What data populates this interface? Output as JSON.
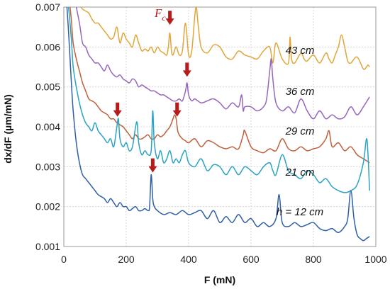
{
  "chart_data": {
    "type": "line",
    "xlabel": "F (mN)",
    "ylabel": "dx/dF (µm/mN)",
    "xlim": [
      0,
      1000
    ],
    "ylim": [
      0.001,
      0.007
    ],
    "xticks": [
      "0",
      "200",
      "400",
      "600",
      "800",
      "1000"
    ],
    "yticks": [
      "0.001",
      "0.002",
      "0.003",
      "0.004",
      "0.005",
      "0.006",
      "0.007"
    ],
    "grid": true,
    "annotation": {
      "text": "F",
      "sub": "c",
      "color": "#b71c1c"
    },
    "series": [
      {
        "name": "43 cm",
        "label": "43 cm",
        "color": "#e0a63a",
        "x": [
          55,
          60,
          70,
          80,
          90,
          100,
          110,
          120,
          130,
          140,
          150,
          160,
          170,
          180,
          190,
          200,
          210,
          220,
          230,
          240,
          250,
          260,
          270,
          280,
          290,
          300,
          310,
          320,
          330,
          335,
          340,
          345,
          350,
          360,
          370,
          380,
          390,
          400,
          410,
          420,
          425,
          430,
          440,
          460,
          480,
          500,
          520,
          540,
          560,
          580,
          600,
          620,
          640,
          660,
          670,
          680,
          700,
          720,
          725,
          730,
          740,
          760,
          770,
          780,
          800,
          820,
          840,
          850,
          860,
          870,
          880,
          890,
          900,
          910,
          920,
          940,
          960,
          970,
          975,
          980
        ],
        "y": [
          0.007,
          0.00695,
          0.0069,
          0.00685,
          0.0067,
          0.0066,
          0.0066,
          0.0065,
          0.0064,
          0.0063,
          0.0062,
          0.00625,
          0.0065,
          0.0061,
          0.00635,
          0.0062,
          0.0061,
          0.006,
          0.0063,
          0.0061,
          0.0059,
          0.00595,
          0.0059,
          0.006,
          0.00585,
          0.006,
          0.0059,
          0.00585,
          0.0058,
          0.006,
          0.00635,
          0.0059,
          0.0058,
          0.006,
          0.0058,
          0.0059,
          0.0066,
          0.0058,
          0.0059,
          0.0068,
          0.007,
          0.0066,
          0.006,
          0.00585,
          0.00605,
          0.006,
          0.00575,
          0.0057,
          0.0059,
          0.0058,
          0.00575,
          0.0057,
          0.0059,
          0.006,
          0.0056,
          0.0061,
          0.0057,
          0.0056,
          0.00625,
          0.0057,
          0.0056,
          0.00585,
          0.0057,
          0.00565,
          0.0058,
          0.0056,
          0.00585,
          0.0057,
          0.0056,
          0.0058,
          0.006,
          0.0063,
          0.006,
          0.00565,
          0.0056,
          0.00575,
          0.00545,
          0.0055,
          0.00555,
          0.0055
        ]
      },
      {
        "name": "36 cm",
        "label": "36 cm",
        "color": "#9467bd",
        "x": [
          40,
          50,
          60,
          70,
          80,
          90,
          100,
          110,
          120,
          130,
          140,
          150,
          160,
          170,
          180,
          190,
          200,
          210,
          220,
          230,
          240,
          250,
          260,
          270,
          280,
          290,
          300,
          310,
          320,
          330,
          340,
          350,
          360,
          370,
          380,
          390,
          395,
          400,
          410,
          420,
          440,
          460,
          480,
          500,
          520,
          540,
          560,
          570,
          575,
          580,
          600,
          620,
          640,
          650,
          660,
          665,
          670,
          680,
          700,
          720,
          740,
          760,
          780,
          800,
          820,
          840,
          860,
          880,
          900,
          920,
          940,
          960,
          980
        ],
        "y": [
          0.007,
          0.0066,
          0.0061,
          0.006,
          0.0058,
          0.0057,
          0.0056,
          0.0056,
          0.0055,
          0.0054,
          0.00555,
          0.0054,
          0.0053,
          0.00525,
          0.0053,
          0.0052,
          0.00515,
          0.0051,
          0.0052,
          0.00515,
          0.005,
          0.00505,
          0.005,
          0.00495,
          0.0049,
          0.0049,
          0.00485,
          0.0048,
          0.0048,
          0.00475,
          0.0047,
          0.00465,
          0.00465,
          0.0047,
          0.00465,
          0.0049,
          0.0051,
          0.0048,
          0.00465,
          0.0047,
          0.0046,
          0.00465,
          0.0047,
          0.0046,
          0.00445,
          0.0046,
          0.0045,
          0.0048,
          0.0044,
          0.0045,
          0.0045,
          0.0044,
          0.0045,
          0.0047,
          0.0054,
          0.0057,
          0.0052,
          0.0046,
          0.0044,
          0.0045,
          0.00435,
          0.0047,
          0.0044,
          0.0042,
          0.0044,
          0.0042,
          0.0043,
          0.0042,
          0.00425,
          0.0045,
          0.0043,
          0.0045,
          0.00475
        ]
      },
      {
        "name": "29 cm",
        "label": "29 cm",
        "color": "#c0603a",
        "x": [
          20,
          25,
          30,
          40,
          50,
          60,
          70,
          80,
          90,
          100,
          110,
          120,
          130,
          140,
          150,
          160,
          170,
          180,
          190,
          200,
          210,
          220,
          230,
          240,
          250,
          260,
          270,
          280,
          290,
          300,
          310,
          320,
          330,
          340,
          350,
          355,
          360,
          365,
          370,
          380,
          390,
          400,
          420,
          440,
          460,
          480,
          500,
          520,
          540,
          560,
          575,
          580,
          600,
          620,
          640,
          660,
          680,
          700,
          720,
          740,
          760,
          780,
          800,
          820,
          840,
          850,
          860,
          880,
          900,
          920,
          940,
          960,
          980
        ],
        "y": [
          0.007,
          0.0066,
          0.0061,
          0.0057,
          0.0054,
          0.0051,
          0.0049,
          0.0047,
          0.00465,
          0.0046,
          0.0045,
          0.0044,
          0.00435,
          0.0043,
          0.0042,
          0.0042,
          0.0041,
          0.00405,
          0.004,
          0.0039,
          0.0038,
          0.0037,
          0.0038,
          0.0037,
          0.0037,
          0.00375,
          0.0038,
          0.0037,
          0.0037,
          0.0038,
          0.00375,
          0.0038,
          0.0039,
          0.004,
          0.0042,
          0.0043,
          0.0042,
          0.0039,
          0.0038,
          0.0037,
          0.00365,
          0.0036,
          0.0037,
          0.0035,
          0.00365,
          0.0036,
          0.0035,
          0.00345,
          0.0035,
          0.00345,
          0.0038,
          0.0039,
          0.0035,
          0.0034,
          0.00335,
          0.00345,
          0.0034,
          0.0037,
          0.00345,
          0.0034,
          0.0035,
          0.0034,
          0.00345,
          0.0035,
          0.0037,
          0.0039,
          0.0035,
          0.0036,
          0.0034,
          0.0035,
          0.0033,
          0.0032,
          0.0031
        ]
      },
      {
        "name": "21 cm",
        "label": "21 cm",
        "color": "#2aa3c5",
        "x": [
          15,
          20,
          25,
          30,
          40,
          50,
          60,
          70,
          80,
          90,
          100,
          110,
          120,
          130,
          140,
          150,
          160,
          170,
          175,
          180,
          190,
          200,
          210,
          220,
          230,
          235,
          240,
          250,
          260,
          270,
          280,
          285,
          290,
          300,
          310,
          320,
          330,
          340,
          350,
          360,
          370,
          380,
          390,
          400,
          420,
          440,
          460,
          480,
          500,
          520,
          540,
          560,
          580,
          600,
          620,
          640,
          660,
          670,
          680,
          700,
          720,
          740,
          760,
          780,
          800,
          820,
          840,
          860,
          880,
          900,
          920,
          940,
          960,
          970,
          975,
          980
        ],
        "y": [
          0.007,
          0.0066,
          0.0061,
          0.0055,
          0.005,
          0.0046,
          0.0043,
          0.0041,
          0.004,
          0.0039,
          0.0041,
          0.0039,
          0.0038,
          0.0037,
          0.0036,
          0.0037,
          0.0035,
          0.004,
          0.0042,
          0.0037,
          0.0035,
          0.0036,
          0.0034,
          0.0035,
          0.004,
          0.0041,
          0.0036,
          0.0033,
          0.0034,
          0.0033,
          0.0034,
          0.0044,
          0.0036,
          0.0032,
          0.0034,
          0.0031,
          0.0032,
          0.0034,
          0.0031,
          0.0032,
          0.0031,
          0.0033,
          0.0034,
          0.0031,
          0.003,
          0.0032,
          0.0029,
          0.00305,
          0.003,
          0.0028,
          0.003,
          0.0028,
          0.003,
          0.0029,
          0.0028,
          0.003,
          0.0031,
          0.0029,
          0.0028,
          0.0033,
          0.0029,
          0.0028,
          0.0027,
          0.0029,
          0.0028,
          0.0026,
          0.0027,
          0.0025,
          0.0024,
          0.00235,
          0.0024,
          0.00255,
          0.0031,
          0.0037,
          0.0033,
          0.0024
        ]
      },
      {
        "name": "h = 12 cm",
        "label": "h = 12 cm",
        "color": "#2f5fa8",
        "x": [
          10,
          15,
          20,
          25,
          30,
          40,
          50,
          60,
          70,
          80,
          90,
          100,
          110,
          120,
          130,
          140,
          150,
          160,
          170,
          180,
          190,
          200,
          210,
          220,
          230,
          240,
          250,
          260,
          270,
          275,
          280,
          285,
          290,
          300,
          320,
          340,
          360,
          380,
          400,
          420,
          440,
          460,
          480,
          500,
          520,
          540,
          560,
          580,
          600,
          620,
          640,
          660,
          680,
          690,
          700,
          720,
          740,
          760,
          780,
          800,
          820,
          840,
          860,
          880,
          900,
          910,
          920,
          930,
          940,
          950,
          960,
          970,
          980
        ],
        "y": [
          0.007,
          0.0064,
          0.0057,
          0.005,
          0.0044,
          0.0036,
          0.0031,
          0.0028,
          0.0027,
          0.0026,
          0.0025,
          0.0024,
          0.0023,
          0.00225,
          0.0022,
          0.0021,
          0.0022,
          0.0021,
          0.002,
          0.0021,
          0.002,
          0.002,
          0.0019,
          0.00195,
          0.002,
          0.0019,
          0.0019,
          0.00195,
          0.0019,
          0.002,
          0.0028,
          0.0022,
          0.002,
          0.0019,
          0.0018,
          0.00185,
          0.0018,
          0.0019,
          0.0018,
          0.00185,
          0.0019,
          0.0017,
          0.0019,
          0.0016,
          0.00175,
          0.0016,
          0.0018,
          0.0016,
          0.0017,
          0.0015,
          0.0016,
          0.0015,
          0.0017,
          0.0023,
          0.0016,
          0.0015,
          0.0016,
          0.0015,
          0.00155,
          0.0016,
          0.00145,
          0.0014,
          0.00145,
          0.00135,
          0.0015,
          0.0017,
          0.0024,
          0.0017,
          0.0013,
          0.0012,
          0.00115,
          0.0012,
          0.00125
        ]
      }
    ],
    "arrows": [
      {
        "series": "43 cm",
        "x": 340,
        "y": 0.0065
      },
      {
        "series": "36 cm",
        "x": 395,
        "y": 0.0052
      },
      {
        "series": "29 cm",
        "x": 363,
        "y": 0.0042
      },
      {
        "series": "21 cm",
        "x": 172,
        "y": 0.0042
      },
      {
        "series": "h = 12 cm",
        "x": 285,
        "y": 0.0028
      }
    ]
  }
}
